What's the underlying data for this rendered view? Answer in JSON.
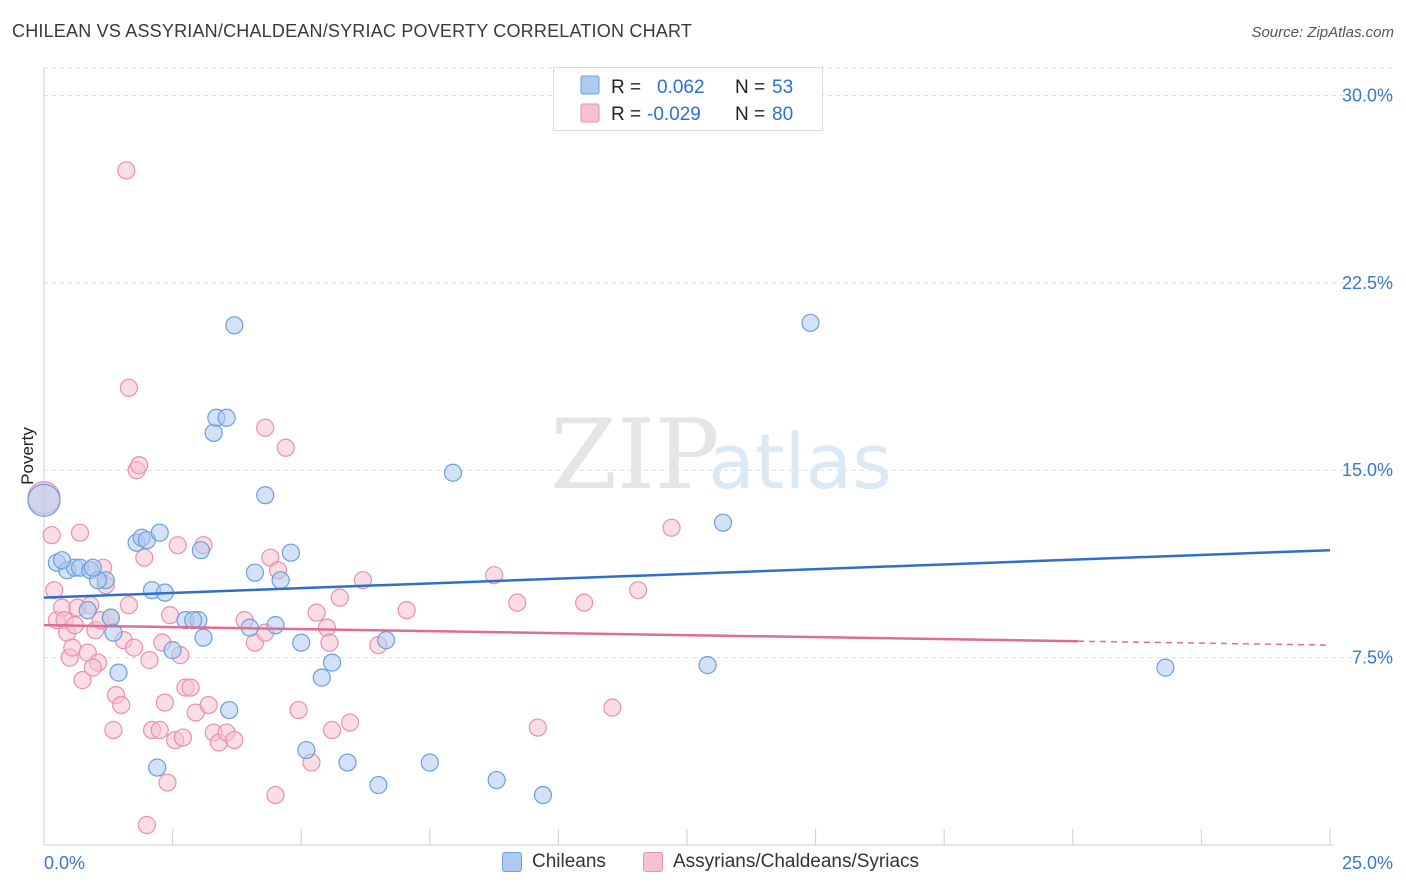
{
  "title": "CHILEAN VS ASSYRIAN/CHALDEAN/SYRIAC POVERTY CORRELATION CHART",
  "source": "Source: ZipAtlas.com",
  "watermark": {
    "zip": "ZIP",
    "atlas": "atlas"
  },
  "colors": {
    "blue_fill": "#aecbf0",
    "blue_stroke": "#6a9fdc",
    "blue_line": "#2f6fcc",
    "pink_fill": "#f7c1d2",
    "pink_stroke": "#ea8fae",
    "pink_line": "#e06c96",
    "tick_text": "#3b78c8"
  },
  "legend": {
    "rows": [
      {
        "r_label": "R =",
        "r_value": "0.062",
        "n_label": "N =",
        "n_value": "53"
      },
      {
        "r_label": "R =",
        "r_value": "-0.029",
        "n_label": "N =",
        "n_value": "80"
      }
    ]
  },
  "bottom_legend": {
    "series1": "Chileans",
    "series2": "Assyrians/Chaldeans/Syriacs"
  },
  "chart_data": {
    "type": "scatter",
    "title": "CHILEAN VS ASSYRIAN/CHALDEAN/SYRIAC POVERTY CORRELATION CHART",
    "xlabel": "",
    "ylabel": "Poverty",
    "xlim": [
      0,
      25
    ],
    "ylim": [
      0,
      31.1
    ],
    "x_tick_labels": [
      "0.0%",
      "25.0%"
    ],
    "y_ticks": [
      7.5,
      15.0,
      22.5,
      30.0
    ],
    "y_tick_labels": [
      "7.5%",
      "15.0%",
      "22.5%",
      "30.0%"
    ],
    "grid": "horizontal dashed",
    "series": [
      {
        "name": "Chileans",
        "r": 0.062,
        "n": 53,
        "trend": {
          "x": [
            0,
            25
          ],
          "y": [
            9.9,
            11.8
          ]
        },
        "points": [
          [
            0.0,
            13.8
          ],
          [
            0.25,
            11.3
          ],
          [
            0.45,
            11.0
          ],
          [
            0.6,
            11.1
          ],
          [
            0.35,
            11.4
          ],
          [
            0.7,
            11.1
          ],
          [
            0.9,
            11.0
          ],
          [
            1.2,
            10.6
          ],
          [
            0.85,
            9.4
          ],
          [
            1.05,
            10.6
          ],
          [
            1.3,
            9.1
          ],
          [
            1.35,
            8.5
          ],
          [
            1.45,
            6.9
          ],
          [
            1.8,
            12.1
          ],
          [
            1.9,
            12.3
          ],
          [
            2.0,
            12.2
          ],
          [
            2.25,
            12.5
          ],
          [
            2.1,
            10.2
          ],
          [
            2.35,
            10.1
          ],
          [
            2.75,
            9.0
          ],
          [
            2.5,
            7.8
          ],
          [
            3.0,
            9.0
          ],
          [
            3.1,
            8.3
          ],
          [
            3.05,
            11.8
          ],
          [
            3.3,
            16.5
          ],
          [
            3.35,
            17.1
          ],
          [
            3.55,
            17.1
          ],
          [
            3.6,
            5.4
          ],
          [
            3.7,
            20.8
          ],
          [
            4.0,
            8.7
          ],
          [
            4.1,
            10.9
          ],
          [
            4.3,
            14.0
          ],
          [
            4.5,
            8.8
          ],
          [
            4.6,
            10.6
          ],
          [
            4.8,
            11.7
          ],
          [
            5.0,
            8.1
          ],
          [
            5.1,
            3.8
          ],
          [
            5.4,
            6.7
          ],
          [
            5.6,
            7.3
          ],
          [
            5.9,
            3.3
          ],
          [
            6.5,
            2.4
          ],
          [
            6.65,
            8.2
          ],
          [
            7.5,
            3.3
          ],
          [
            7.95,
            14.9
          ],
          [
            8.8,
            2.6
          ],
          [
            9.7,
            2.0
          ],
          [
            2.2,
            3.1
          ],
          [
            12.9,
            7.2
          ],
          [
            13.2,
            12.9
          ],
          [
            14.9,
            20.9
          ],
          [
            21.8,
            7.1
          ],
          [
            0.95,
            11.1
          ],
          [
            2.9,
            9.0
          ]
        ]
      },
      {
        "name": "Assyrians/Chaldeans/Syriacs",
        "r": -0.029,
        "n": 80,
        "trend": {
          "x": [
            0,
            25
          ],
          "y": [
            8.8,
            8.0
          ]
        },
        "points": [
          [
            0.0,
            13.9
          ],
          [
            0.15,
            12.4
          ],
          [
            0.2,
            10.2
          ],
          [
            0.25,
            9.0
          ],
          [
            0.35,
            9.5
          ],
          [
            0.4,
            9.0
          ],
          [
            0.45,
            8.5
          ],
          [
            0.5,
            7.5
          ],
          [
            0.55,
            7.9
          ],
          [
            0.6,
            8.8
          ],
          [
            0.65,
            9.5
          ],
          [
            0.7,
            12.5
          ],
          [
            0.75,
            6.6
          ],
          [
            0.85,
            7.7
          ],
          [
            0.9,
            9.6
          ],
          [
            1.0,
            8.6
          ],
          [
            1.05,
            7.3
          ],
          [
            1.1,
            9.0
          ],
          [
            1.15,
            11.1
          ],
          [
            1.2,
            10.4
          ],
          [
            1.3,
            9.1
          ],
          [
            1.35,
            4.6
          ],
          [
            1.4,
            6.0
          ],
          [
            1.5,
            5.6
          ],
          [
            1.55,
            8.2
          ],
          [
            1.65,
            9.6
          ],
          [
            1.8,
            15.0
          ],
          [
            1.85,
            15.2
          ],
          [
            1.95,
            11.5
          ],
          [
            2.05,
            7.4
          ],
          [
            2.1,
            4.6
          ],
          [
            2.25,
            4.6
          ],
          [
            2.35,
            5.7
          ],
          [
            2.3,
            8.1
          ],
          [
            2.45,
            9.2
          ],
          [
            2.55,
            4.2
          ],
          [
            2.65,
            7.6
          ],
          [
            2.7,
            4.3
          ],
          [
            2.75,
            6.3
          ],
          [
            2.85,
            6.3
          ],
          [
            2.95,
            5.3
          ],
          [
            3.1,
            12.0
          ],
          [
            3.2,
            5.6
          ],
          [
            3.3,
            4.5
          ],
          [
            3.4,
            4.1
          ],
          [
            3.55,
            4.5
          ],
          [
            3.7,
            4.2
          ],
          [
            3.9,
            9.0
          ],
          [
            4.1,
            8.1
          ],
          [
            4.3,
            8.5
          ],
          [
            4.4,
            11.5
          ],
          [
            4.5,
            2.0
          ],
          [
            4.7,
            15.9
          ],
          [
            4.95,
            5.4
          ],
          [
            5.2,
            3.3
          ],
          [
            5.3,
            9.3
          ],
          [
            5.5,
            8.7
          ],
          [
            5.55,
            8.1
          ],
          [
            5.6,
            4.6
          ],
          [
            5.75,
            9.9
          ],
          [
            5.95,
            4.9
          ],
          [
            6.2,
            10.6
          ],
          [
            6.5,
            8.0
          ],
          [
            7.05,
            9.4
          ],
          [
            8.75,
            10.8
          ],
          [
            9.2,
            9.7
          ],
          [
            9.6,
            4.7
          ],
          [
            10.5,
            9.7
          ],
          [
            11.05,
            5.5
          ],
          [
            11.55,
            10.2
          ],
          [
            12.2,
            12.7
          ],
          [
            1.65,
            18.3
          ],
          [
            1.6,
            27.0
          ],
          [
            2.4,
            2.5
          ],
          [
            2.0,
            0.8
          ],
          [
            4.3,
            16.7
          ],
          [
            4.55,
            11.0
          ],
          [
            2.6,
            12.0
          ],
          [
            0.95,
            7.1
          ],
          [
            1.75,
            7.9
          ]
        ]
      }
    ]
  }
}
